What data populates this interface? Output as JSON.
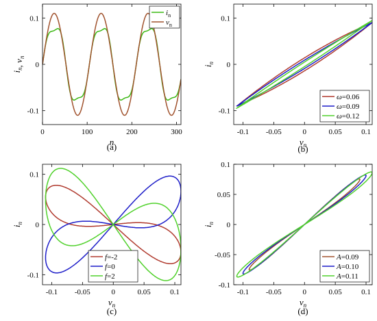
{
  "colors": {
    "green": "#3cb814",
    "brown": "#a0522d",
    "red": "#b03a2e",
    "blue": "#1c1cc8",
    "lightgreen": "#4fd12a"
  },
  "chart_data": [
    {
      "id": "a",
      "type": "line",
      "caption": "(a)",
      "xlabel": "n",
      "ylabel": "i_n, v_n",
      "xlim": [
        0,
        310
      ],
      "ylim": [
        -0.13,
        0.13
      ],
      "xticks": [
        "0",
        "100",
        "200",
        "300"
      ],
      "xtick_values": [
        0,
        100,
        200,
        300
      ],
      "yticks": [
        "0.1",
        "0",
        "-0.1"
      ],
      "ytick_values": [
        0.1,
        0,
        -0.1
      ],
      "legend_position": "top-right",
      "series": [
        {
          "name": "i_n",
          "color": "#3cb814",
          "amplitude": 0.085,
          "period": 105,
          "phase": 0,
          "distortion": 0.012
        },
        {
          "name": "v_n",
          "color": "#a0522d",
          "amplitude": 0.11,
          "period": 105,
          "phase": 0,
          "distortion": 0
        }
      ]
    },
    {
      "id": "b",
      "type": "line",
      "caption": "(b)",
      "xlabel": "v_n",
      "ylabel": "i_n",
      "xlim": [
        -0.115,
        0.11
      ],
      "ylim": [
        -0.13,
        0.13
      ],
      "xticks": [
        "-0.1",
        "-0.05",
        "0",
        "0.05",
        "0.1"
      ],
      "xtick_values": [
        -0.1,
        -0.05,
        0,
        0.05,
        0.1
      ],
      "yticks": [
        "0.1",
        "0",
        "-0.1"
      ],
      "ytick_values": [
        0.1,
        0,
        -0.1
      ],
      "legend_position": "bottom-right",
      "series": [
        {
          "name": "ω=0.06",
          "color": "#b03a2e",
          "amp": 0.11,
          "slope": 0.82,
          "loop": 0.014,
          "cubic": 2.5
        },
        {
          "name": "ω=0.09",
          "color": "#1c1cc8",
          "amp": 0.11,
          "slope": 0.82,
          "loop": 0.009,
          "cubic": 2.5
        },
        {
          "name": "ω=0.12",
          "color": "#4fd12a",
          "amp": 0.11,
          "slope": 0.86,
          "loop": 0.005,
          "cubic": 2.5
        }
      ]
    },
    {
      "id": "c",
      "type": "line",
      "caption": "(c)",
      "xlabel": "v_n",
      "ylabel": "i_n",
      "xlim": [
        -0.115,
        0.11
      ],
      "ylim": [
        -0.12,
        0.12
      ],
      "xticks": [
        "-0.1",
        "-0.05",
        "0",
        "0.05",
        "0.1"
      ],
      "xtick_values": [
        -0.1,
        -0.05,
        0,
        0.05,
        0.1
      ],
      "yticks": [
        "0.1",
        "0",
        "-0.1"
      ],
      "ytick_values": [
        0.1,
        0,
        -0.1
      ],
      "legend_position": "bottom-center",
      "series": [
        {
          "name": "f=-2",
          "color": "#b03a2e",
          "amp": 0.11,
          "slope": -0.5,
          "loop": 0.035
        },
        {
          "name": "f=0",
          "color": "#1c1cc8",
          "amp": 0.11,
          "slope": 0.6,
          "loop": 0.045
        },
        {
          "name": "f=2",
          "color": "#4fd12a",
          "amp": 0.11,
          "slope": -0.45,
          "loop": 0.075
        }
      ]
    },
    {
      "id": "d",
      "type": "line",
      "caption": "(d)",
      "xlabel": "v_n",
      "ylabel": "i_n",
      "xlim": [
        -0.115,
        0.11
      ],
      "ylim": [
        -0.1,
        0.1
      ],
      "xticks": [
        "-0.1",
        "-0.05",
        "0",
        "0.05",
        "0.1"
      ],
      "xtick_values": [
        -0.1,
        -0.05,
        0,
        0.05,
        0.1
      ],
      "yticks": [
        "0.1",
        "0.05",
        "0",
        "-0.05",
        "-0.1"
      ],
      "ytick_values": [
        0.1,
        0.05,
        0,
        -0.05,
        -0.1
      ],
      "legend_position": "bottom-right",
      "series": [
        {
          "name": "A=0.09",
          "color": "#a0522d",
          "amp": 0.09,
          "slope": 0.83,
          "loop": 0.006
        },
        {
          "name": "A=0.10",
          "color": "#1c1cc8",
          "amp": 0.1,
          "slope": 0.81,
          "loop": 0.007
        },
        {
          "name": "A=0.11",
          "color": "#4fd12a",
          "amp": 0.11,
          "slope": 0.78,
          "loop": 0.008
        }
      ]
    }
  ]
}
